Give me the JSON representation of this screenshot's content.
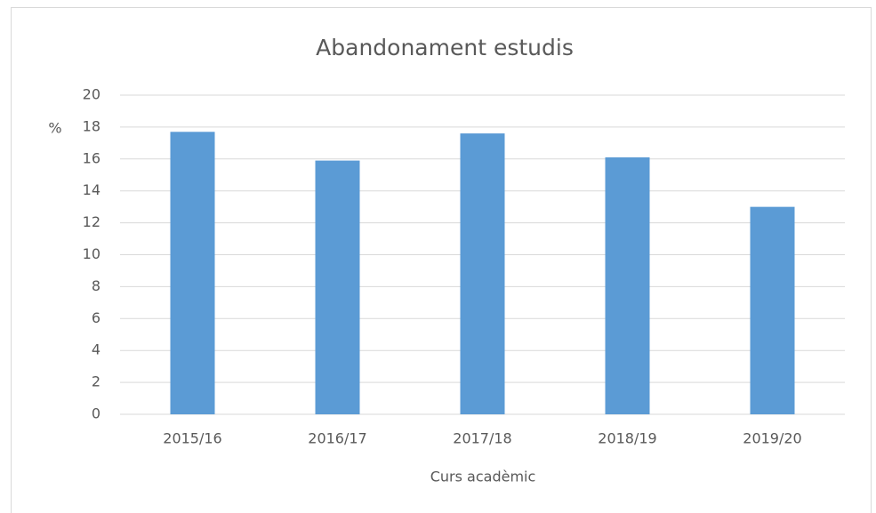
{
  "chart_data": {
    "type": "bar",
    "title": "Abandonament estudis",
    "ylabel": "%",
    "xlabel": "Curs acadèmic",
    "categories": [
      "2015/16",
      "2016/17",
      "2017/18",
      "2018/19",
      "2019/20"
    ],
    "values": [
      17.7,
      15.9,
      17.6,
      16.1,
      13.0
    ],
    "color": "#5b9bd5",
    "ylim": [
      0,
      20
    ],
    "yticks": [
      0,
      2,
      4,
      6,
      8,
      10,
      12,
      14,
      16,
      18,
      20
    ],
    "grid": true
  }
}
